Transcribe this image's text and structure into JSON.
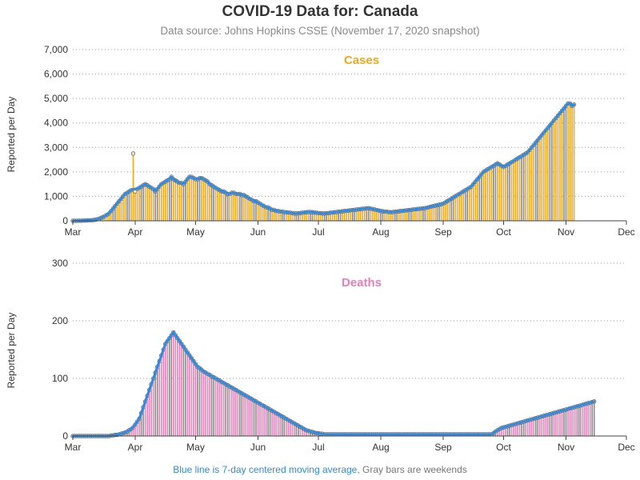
{
  "header": {
    "title": "COVID-19 Data for: Canada",
    "subtitle": "Data source: Johns Hopkins CSSE (November 17, 2020 snapshot)"
  },
  "footnote": {
    "blue_text": "Blue line is 7-day centered moving average,",
    "gray_text": "Gray bars are weekends"
  },
  "colors": {
    "cases": "#f0a81c",
    "deaths": "#e77fb9",
    "weekend": "#8a8a8a",
    "moving_average": "#2d8ae6"
  },
  "chart_data": [
    {
      "type": "bar",
      "title": "Cases",
      "ylabel": "Reported per Day",
      "xlabel": "",
      "ylim": [
        0,
        7000
      ],
      "yticks": [
        0,
        1000,
        2000,
        3000,
        4000,
        5000,
        6000,
        7000
      ],
      "ytick_labels": [
        "0",
        "1,000",
        "2,000",
        "3,000",
        "4,000",
        "5,000",
        "6,000",
        "7,000"
      ],
      "xlim": [
        "2020-03-01",
        "2020-12-01"
      ],
      "xtick_labels": [
        "Mar",
        "Apr",
        "May",
        "Jun",
        "Jul",
        "Aug",
        "Sep",
        "Oct",
        "Nov",
        "Dec"
      ],
      "grid": "horizontal dotted",
      "start_date": "2020-03-01",
      "daily_values": [
        0,
        0,
        0,
        5,
        5,
        10,
        10,
        15,
        20,
        20,
        30,
        40,
        60,
        80,
        120,
        150,
        200,
        250,
        300,
        400,
        500,
        600,
        700,
        800,
        900,
        1000,
        1100,
        1150,
        1200,
        1250,
        2750,
        1200,
        1300,
        1350,
        1400,
        1450,
        1500,
        1450,
        1400,
        1350,
        1300,
        1200,
        1300,
        1400,
        1500,
        1550,
        1600,
        1650,
        1700,
        1800,
        1700,
        1650,
        1600,
        1550,
        1550,
        1500,
        1600,
        1700,
        1800,
        1800,
        1750,
        1700,
        1700,
        1750,
        1750,
        1700,
        1650,
        1600,
        1500,
        1450,
        1400,
        1350,
        1300,
        1250,
        1200,
        1200,
        1150,
        1100,
        1100,
        1150,
        1150,
        1100,
        1100,
        1100,
        1050,
        1050,
        1000,
        950,
        900,
        850,
        800,
        800,
        750,
        700,
        650,
        600,
        550,
        550,
        500,
        450,
        450,
        400,
        400,
        380,
        370,
        360,
        350,
        340,
        330,
        320,
        300,
        300,
        310,
        320,
        330,
        340,
        350,
        360,
        360,
        350,
        340,
        330,
        320,
        310,
        300,
        300,
        310,
        320,
        330,
        340,
        350,
        360,
        370,
        380,
        390,
        400,
        410,
        420,
        430,
        440,
        450,
        460,
        470,
        480,
        490,
        500,
        510,
        520,
        500,
        480,
        460,
        440,
        420,
        400,
        390,
        380,
        370,
        360,
        350,
        360,
        370,
        380,
        390,
        400,
        410,
        420,
        430,
        440,
        450,
        460,
        470,
        480,
        490,
        500,
        510,
        520,
        540,
        560,
        580,
        600,
        620,
        640,
        660,
        680,
        700,
        750,
        800,
        850,
        900,
        950,
        1000,
        1050,
        1100,
        1150,
        1200,
        1250,
        1300,
        1350,
        1400,
        1500,
        1600,
        1700,
        1800,
        1900,
        2000,
        2050,
        2100,
        2150,
        2200,
        2250,
        2300,
        2350,
        2300,
        2250,
        2200,
        2250,
        2300,
        2350,
        2400,
        2450,
        2500,
        2550,
        2600,
        2650,
        2700,
        2750,
        2800,
        2900,
        3000,
        3100,
        3200,
        3300,
        3400,
        3500,
        3600,
        3700,
        3800,
        3900,
        4000,
        4100,
        4200,
        4300,
        4400,
        4500,
        4600,
        4700,
        4800,
        4800,
        4700,
        4750
      ],
      "moving_average": [
        0,
        0,
        0,
        5,
        5,
        10,
        10,
        15,
        20,
        20,
        30,
        40,
        60,
        80,
        120,
        150,
        200,
        250,
        300,
        400,
        500,
        600,
        700,
        800,
        900,
        1000,
        1100,
        1150,
        1200,
        1250,
        1300,
        1300,
        1300,
        1350,
        1400,
        1450,
        1500,
        1450,
        1400,
        1350,
        1300,
        1200,
        1300,
        1400,
        1500,
        1550,
        1600,
        1650,
        1700,
        1800,
        1700,
        1650,
        1600,
        1550,
        1550,
        1500,
        1600,
        1700,
        1800,
        1800,
        1750,
        1700,
        1700,
        1750,
        1750,
        1700,
        1650,
        1600,
        1500,
        1450,
        1400,
        1350,
        1300,
        1250,
        1200,
        1200,
        1150,
        1100,
        1100,
        1150,
        1150,
        1100,
        1100,
        1100,
        1050,
        1050,
        1000,
        950,
        900,
        850,
        800,
        800,
        750,
        700,
        650,
        600,
        550,
        550,
        500,
        450,
        450,
        400,
        400,
        380,
        370,
        360,
        350,
        340,
        330,
        320,
        300,
        300,
        310,
        320,
        330,
        340,
        350,
        360,
        360,
        350,
        340,
        330,
        320,
        310,
        300,
        300,
        310,
        320,
        330,
        340,
        350,
        360,
        370,
        380,
        390,
        400,
        410,
        420,
        430,
        440,
        450,
        460,
        470,
        480,
        490,
        500,
        510,
        520,
        500,
        480,
        460,
        440,
        420,
        400,
        390,
        380,
        370,
        360,
        350,
        360,
        370,
        380,
        390,
        400,
        410,
        420,
        430,
        440,
        450,
        460,
        470,
        480,
        490,
        500,
        510,
        520,
        540,
        560,
        580,
        600,
        620,
        640,
        660,
        680,
        700,
        750,
        800,
        850,
        900,
        950,
        1000,
        1050,
        1100,
        1150,
        1200,
        1250,
        1300,
        1350,
        1400,
        1500,
        1600,
        1700,
        1800,
        1900,
        2000,
        2050,
        2100,
        2150,
        2200,
        2250,
        2300,
        2350,
        2300,
        2250,
        2200,
        2250,
        2300,
        2350,
        2400,
        2450,
        2500,
        2550,
        2600,
        2650,
        2700,
        2750,
        2800,
        2900,
        3000,
        3100,
        3200,
        3300,
        3400,
        3500,
        3600,
        3700,
        3800,
        3900,
        4000,
        4100,
        4200,
        4300,
        4400,
        4500,
        4600,
        4700,
        4800,
        4800,
        4700,
        4750
      ]
    },
    {
      "type": "bar",
      "title": "Deaths",
      "ylabel": "Reported per Day",
      "xlabel": "",
      "ylim": [
        0,
        300
      ],
      "yticks": [
        0,
        100,
        200,
        300
      ],
      "ytick_labels": [
        "0",
        "100",
        "200",
        "300"
      ],
      "xlim": [
        "2020-03-01",
        "2020-12-01"
      ],
      "xtick_labels": [
        "Mar",
        "Apr",
        "May",
        "Jun",
        "Jul",
        "Aug",
        "Sep",
        "Oct",
        "Nov",
        "Dec"
      ],
      "grid": "horizontal dotted",
      "start_date": "2020-03-01",
      "daily_values": [
        0,
        0,
        0,
        0,
        0,
        0,
        0,
        0,
        0,
        0,
        0,
        0,
        0,
        0,
        0,
        0,
        0,
        0,
        0,
        1,
        1,
        2,
        2,
        3,
        4,
        5,
        6,
        8,
        10,
        12,
        15,
        20,
        25,
        30,
        40,
        50,
        60,
        70,
        80,
        90,
        100,
        110,
        120,
        130,
        140,
        150,
        160,
        165,
        170,
        175,
        180,
        175,
        170,
        165,
        160,
        155,
        150,
        145,
        140,
        135,
        130,
        125,
        120,
        118,
        115,
        112,
        110,
        108,
        106,
        104,
        102,
        100,
        98,
        96,
        94,
        92,
        90,
        88,
        86,
        84,
        82,
        80,
        78,
        76,
        74,
        72,
        70,
        68,
        66,
        64,
        62,
        60,
        58,
        56,
        54,
        52,
        50,
        48,
        46,
        44,
        42,
        40,
        38,
        36,
        34,
        32,
        30,
        28,
        26,
        24,
        22,
        20,
        18,
        16,
        14,
        12,
        10,
        9,
        8,
        7,
        6,
        5,
        5,
        4,
        4,
        3,
        3,
        3,
        3,
        3,
        3,
        3,
        3,
        3,
        3,
        3,
        3,
        3,
        3,
        3,
        3,
        3,
        3,
        3,
        3,
        3,
        3,
        3,
        3,
        3,
        3,
        3,
        3,
        3,
        3,
        3,
        3,
        3,
        3,
        3,
        3,
        3,
        3,
        3,
        3,
        3,
        3,
        3,
        3,
        3,
        3,
        3,
        3,
        3,
        3,
        3,
        3,
        3,
        3,
        3,
        3,
        3,
        3,
        3,
        3,
        3,
        3,
        3,
        3,
        3,
        3,
        3,
        3,
        3,
        3,
        3,
        3,
        3,
        3,
        3,
        3,
        3,
        3,
        3,
        3,
        3,
        3,
        3,
        3,
        5,
        8,
        10,
        12,
        14,
        15,
        16,
        17,
        18,
        19,
        20,
        21,
        22,
        23,
        24,
        25,
        26,
        27,
        28,
        29,
        30,
        31,
        32,
        33,
        34,
        35,
        36,
        37,
        38,
        39,
        40,
        41,
        42,
        43,
        44,
        45,
        46,
        47,
        48,
        49,
        50,
        51,
        52,
        53,
        54,
        55,
        56,
        57,
        58,
        59,
        60
      ],
      "moving_average": [
        0,
        0,
        0,
        0,
        0,
        0,
        0,
        0,
        0,
        0,
        0,
        0,
        0,
        0,
        0,
        0,
        0,
        0,
        0,
        1,
        1,
        2,
        2,
        3,
        4,
        5,
        6,
        8,
        10,
        12,
        15,
        20,
        25,
        30,
        40,
        50,
        60,
        70,
        80,
        90,
        100,
        110,
        120,
        130,
        140,
        150,
        160,
        165,
        170,
        175,
        180,
        175,
        170,
        165,
        160,
        155,
        150,
        145,
        140,
        135,
        130,
        125,
        120,
        118,
        115,
        112,
        110,
        108,
        106,
        104,
        102,
        100,
        98,
        96,
        94,
        92,
        90,
        88,
        86,
        84,
        82,
        80,
        78,
        76,
        74,
        72,
        70,
        68,
        66,
        64,
        62,
        60,
        58,
        56,
        54,
        52,
        50,
        48,
        46,
        44,
        42,
        40,
        38,
        36,
        34,
        32,
        30,
        28,
        26,
        24,
        22,
        20,
        18,
        16,
        14,
        12,
        10,
        9,
        8,
        7,
        6,
        5,
        5,
        4,
        4,
        3,
        3,
        3,
        3,
        3,
        3,
        3,
        3,
        3,
        3,
        3,
        3,
        3,
        3,
        3,
        3,
        3,
        3,
        3,
        3,
        3,
        3,
        3,
        3,
        3,
        3,
        3,
        3,
        3,
        3,
        3,
        3,
        3,
        3,
        3,
        3,
        3,
        3,
        3,
        3,
        3,
        3,
        3,
        3,
        3,
        3,
        3,
        3,
        3,
        3,
        3,
        3,
        3,
        3,
        3,
        3,
        3,
        3,
        3,
        3,
        3,
        3,
        3,
        3,
        3,
        3,
        3,
        3,
        3,
        3,
        3,
        3,
        3,
        3,
        3,
        3,
        3,
        3,
        3,
        3,
        3,
        3,
        3,
        3,
        5,
        8,
        10,
        12,
        14,
        15,
        16,
        17,
        18,
        19,
        20,
        21,
        22,
        23,
        24,
        25,
        26,
        27,
        28,
        29,
        30,
        31,
        32,
        33,
        34,
        35,
        36,
        37,
        38,
        39,
        40,
        41,
        42,
        43,
        44,
        45,
        46,
        47,
        48,
        49,
        50,
        51,
        52,
        53,
        54,
        55,
        56,
        57,
        58,
        59,
        60
      ]
    }
  ]
}
